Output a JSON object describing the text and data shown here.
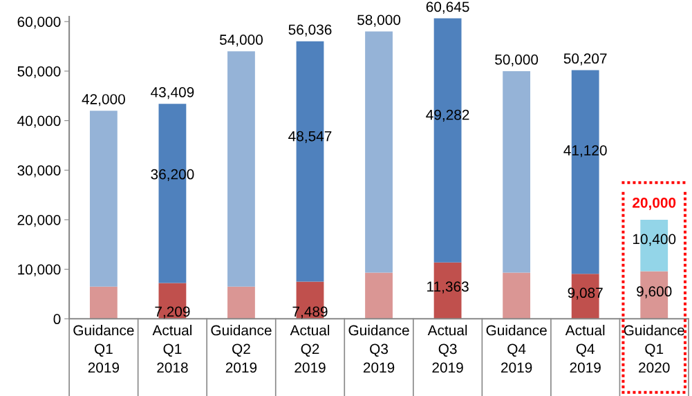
{
  "chart_data": {
    "type": "bar",
    "stacked": true,
    "categories": [
      "Guidance\nQ1\n2019",
      "Actual\nQ1\n2018",
      "Guidance\nQ2\n2019",
      "Actual\nQ2\n2019",
      "Guidance\nQ3\n2019",
      "Actual\nQ3\n2019",
      "Guidance\nQ4\n2019",
      "Actual\nQ4\n2019",
      "Guidance\nQ1\n2020"
    ],
    "series": [
      {
        "colors": [
          "#da9694",
          "#c0504d",
          "#da9694",
          "#c0504d",
          "#da9694",
          "#c0504d",
          "#da9694",
          "#c0504d",
          "#da9694"
        ],
        "values": [
          6500,
          7209,
          6500,
          7489,
          9300,
          11363,
          9300,
          9087,
          9600
        ],
        "value_labels": [
          null,
          "7,209",
          null,
          "7,489",
          null,
          "11,363",
          null,
          "9,087",
          "9,600"
        ]
      },
      {
        "colors": [
          "#95b3d7",
          "#4f81bd",
          "#95b3d7",
          "#4f81bd",
          "#95b3d7",
          "#4f81bd",
          "#95b3d7",
          "#4f81bd",
          "#93d5e8"
        ],
        "values": [
          35500,
          36200,
          47500,
          48547,
          48700,
          49282,
          40700,
          41120,
          10400
        ],
        "value_labels": [
          null,
          "36,200",
          null,
          "48,547",
          null,
          "49,282",
          null,
          "41,120",
          "10,400"
        ]
      }
    ],
    "totals": [
      "42,000",
      "43,409",
      "54,000",
      "56,036",
      "58,000",
      "60,645",
      "50,000",
      "50,207",
      "20,000"
    ],
    "ylim": [
      0,
      61000
    ],
    "yticks": [
      {
        "value": 0,
        "label": "0"
      },
      {
        "value": 10000,
        "label": "10,000"
      },
      {
        "value": 20000,
        "label": "20,000"
      },
      {
        "value": 30000,
        "label": "30,000"
      },
      {
        "value": 40000,
        "label": "40,000"
      },
      {
        "value": 50000,
        "label": "50,000"
      },
      {
        "value": 60000,
        "label": "60,000"
      }
    ],
    "grid": false,
    "legend": false
  }
}
